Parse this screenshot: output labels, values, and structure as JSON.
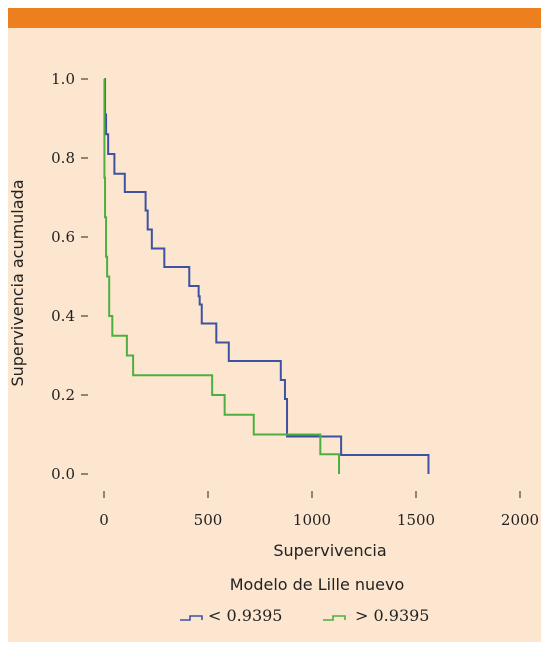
{
  "chart_data": {
    "type": "line",
    "title": "",
    "xlabel": "Supervivencia",
    "ylabel": "Supervivencia acumulada",
    "xlim": [
      0,
      2000
    ],
    "ylim": [
      0,
      1.0
    ],
    "x_ticks": [
      "0",
      "500",
      "1000",
      "1500",
      "2000"
    ],
    "x_tick_values": [
      0,
      500,
      1000,
      1500,
      2000
    ],
    "y_ticks": [
      "0.0",
      "0.2",
      "0.4",
      "0.6",
      "0.8",
      "1.0"
    ],
    "y_tick_values": [
      0,
      0.2,
      0.4,
      0.6,
      0.8,
      1.0
    ],
    "legend_title": "Modelo de Lille nuevo",
    "series": [
      {
        "name": "< 0.9395",
        "color": "#3d52a1",
        "step": true,
        "x": [
          0,
          5,
          10,
          20,
          50,
          100,
          200,
          210,
          230,
          290,
          410,
          455,
          460,
          470,
          490,
          540,
          560,
          600,
          620,
          850,
          870,
          880,
          1050,
          1080,
          1110,
          1140,
          1560,
          1560
        ],
        "y": [
          1.0,
          0.91,
          0.86,
          0.81,
          0.76,
          0.714,
          0.667,
          0.619,
          0.571,
          0.524,
          0.476,
          0.45,
          0.429,
          0.381,
          0.381,
          0.333,
          0.333,
          0.286,
          0.286,
          0.238,
          0.19,
          0.095,
          0.095,
          0.095,
          0.095,
          0.048,
          0.048,
          0.0
        ]
      },
      {
        "name": "> 0.9395",
        "color": "#4caf3f",
        "step": true,
        "x": [
          0,
          2,
          5,
          10,
          15,
          25,
          40,
          70,
          110,
          140,
          520,
          580,
          720,
          860,
          1040,
          1130,
          1130
        ],
        "y": [
          1.0,
          0.75,
          0.65,
          0.55,
          0.5,
          0.4,
          0.35,
          0.35,
          0.3,
          0.25,
          0.2,
          0.15,
          0.1,
          0.1,
          0.05,
          0.05,
          0.0
        ]
      }
    ]
  }
}
